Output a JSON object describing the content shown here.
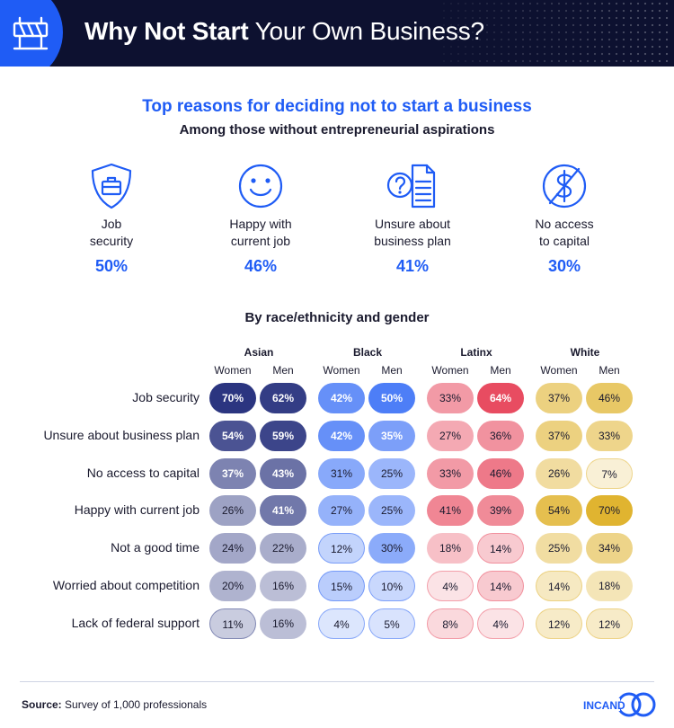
{
  "header": {
    "title_bold": "Why Not Start",
    "title_light": "Your Own Business?"
  },
  "colors": {
    "accent": "#1f5cf5",
    "header_bg": "#0d1130",
    "asian": "#2b3580",
    "black": "#1f5cf5",
    "latinx": "#e84a5f",
    "white": "#e0b430"
  },
  "icons": [
    "shield-briefcase-icon",
    "smiley-face-icon",
    "question-document-icon",
    "no-dollar-icon"
  ],
  "chart_data": [
    {
      "type": "table",
      "title": "Top reasons for deciding not to start a business",
      "subtitle": "Among those without entrepreneurial aspirations",
      "items": [
        {
          "label1": "Job",
          "label2": "security",
          "value": "50%"
        },
        {
          "label1": "Happy with",
          "label2": "current job",
          "value": "46%"
        },
        {
          "label1": "Unsure about",
          "label2": "business plan",
          "value": "41%"
        },
        {
          "label1": "No access",
          "label2": "to capital",
          "value": "30%"
        }
      ]
    },
    {
      "type": "heatmap",
      "title": "By race/ethnicity and gender",
      "groups": [
        "Asian",
        "Black",
        "Latinx",
        "White"
      ],
      "genders": [
        "Women",
        "Men"
      ],
      "rows": [
        "Job security",
        "Unsure about business plan",
        "No access to capital",
        "Happy with current job",
        "Not a good time",
        "Worried about competition",
        "Lack of federal support"
      ],
      "values": [
        [
          70,
          62,
          42,
          50,
          33,
          64,
          37,
          46
        ],
        [
          54,
          59,
          42,
          35,
          27,
          36,
          37,
          33
        ],
        [
          37,
          43,
          31,
          25,
          33,
          46,
          26,
          7
        ],
        [
          26,
          41,
          27,
          25,
          41,
          39,
          54,
          70
        ],
        [
          24,
          22,
          12,
          30,
          18,
          14,
          25,
          34
        ],
        [
          20,
          16,
          15,
          10,
          4,
          14,
          14,
          18
        ],
        [
          11,
          16,
          4,
          5,
          8,
          4,
          12,
          12
        ]
      ]
    }
  ],
  "footer": {
    "source_label": "Source:",
    "source_text": "Survey of 1,000 professionals",
    "logo_text": "INCAND"
  }
}
